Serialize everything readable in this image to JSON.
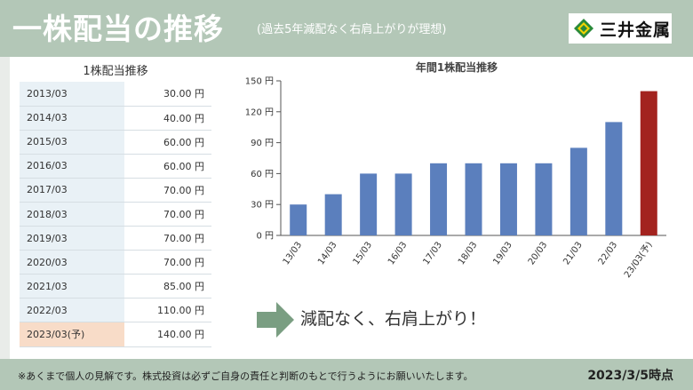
{
  "header": {
    "title": "一株配当の推移",
    "subtitle": "(過去5年減配なく右肩上がりが理想)",
    "logo_text": "三井金属",
    "brand_color": "#b3c7b7"
  },
  "table": {
    "title": "1株配当推移",
    "rows": [
      {
        "year": "2013/03",
        "value": "30.00 円"
      },
      {
        "year": "2014/03",
        "value": "40.00 円"
      },
      {
        "year": "2015/03",
        "value": "60.00 円"
      },
      {
        "year": "2016/03",
        "value": "60.00 円"
      },
      {
        "year": "2017/03",
        "value": "70.00 円"
      },
      {
        "year": "2018/03",
        "value": "70.00 円"
      },
      {
        "year": "2019/03",
        "value": "70.00 円"
      },
      {
        "year": "2020/03",
        "value": "70.00 円"
      },
      {
        "year": "2021/03",
        "value": "85.00 円"
      },
      {
        "year": "2022/03",
        "value": "110.00 円"
      },
      {
        "year": "2023/03(予)",
        "value": "140.00 円"
      }
    ]
  },
  "chart_data": {
    "type": "bar",
    "title": "年間1株配当推移",
    "categories": [
      "13/03",
      "14/03",
      "15/03",
      "16/03",
      "17/03",
      "18/03",
      "19/03",
      "20/03",
      "21/03",
      "22/03",
      "23/03(予)"
    ],
    "values": [
      30,
      40,
      60,
      60,
      70,
      70,
      70,
      70,
      85,
      110,
      140
    ],
    "ylim": [
      0,
      150
    ],
    "yticks": [
      "0 円",
      "30 円",
      "60 円",
      "90 円",
      "120 円",
      "150 円"
    ],
    "grid": false,
    "bar_color": "#5b7fbd",
    "highlight_color": "#a3231f",
    "highlight_index": 10
  },
  "slogan": "減配なく、右肩上がり！",
  "footer": {
    "note": "※あくまで個人の見解です。株式投資は必ずご自身の責任と判断のもとで行うようにお願いいたします。",
    "date": "2023/3/5時点"
  }
}
